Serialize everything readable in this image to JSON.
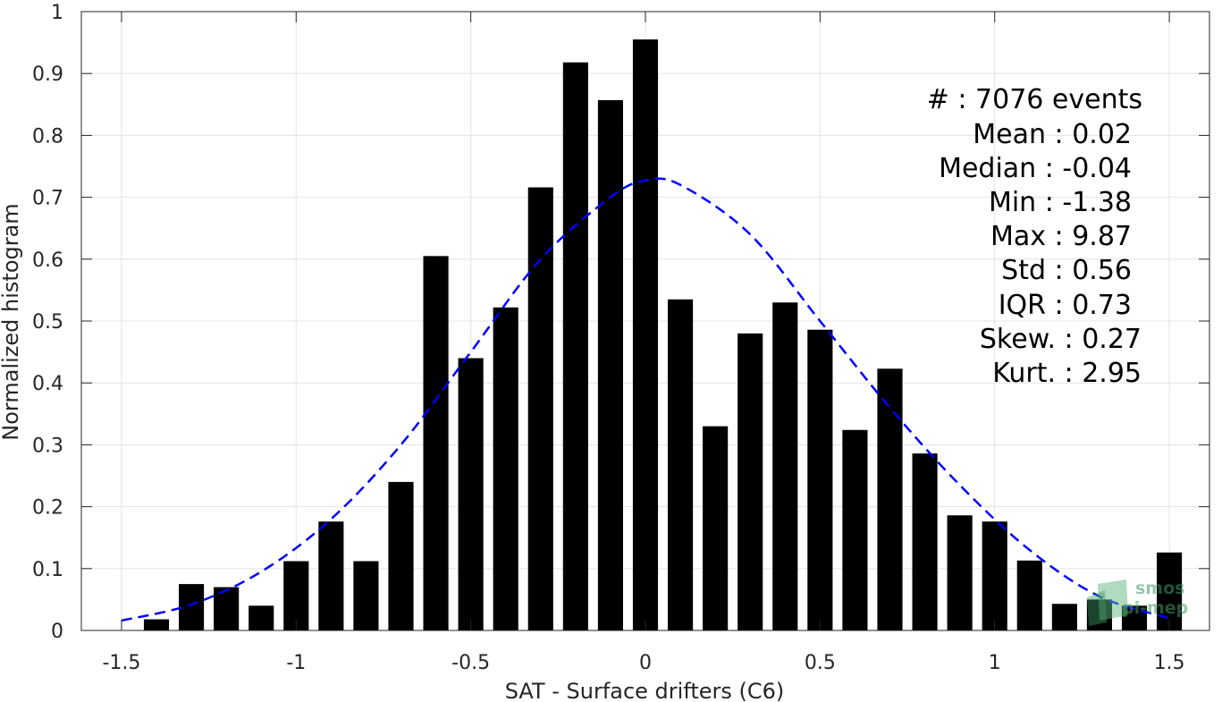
{
  "chart_data": {
    "type": "bar",
    "xlabel": "SAT - Surface drifters (C6)",
    "ylabel": "Normalized histogram",
    "xlim": [
      -1.615,
      1.615
    ],
    "ylim": [
      0,
      1
    ],
    "grid": true,
    "xticks": [
      "-1.5",
      "-1",
      "-0.5",
      "0",
      "0.5",
      "1",
      "1.5"
    ],
    "yticks": [
      "0",
      "0.1",
      "0.2",
      "0.3",
      "0.4",
      "0.5",
      "0.6",
      "0.7",
      "0.8",
      "0.9",
      "1"
    ],
    "bars": {
      "x": [
        -1.4,
        -1.3,
        -1.2,
        -1.1,
        -1.0,
        -0.9,
        -0.8,
        -0.7,
        -0.6,
        -0.5,
        -0.4,
        -0.3,
        -0.2,
        -0.1,
        0.0,
        0.1,
        0.2,
        0.3,
        0.4,
        0.5,
        0.6,
        0.7,
        0.8,
        0.9,
        1.0,
        1.1,
        1.2,
        1.3,
        1.4,
        1.5
      ],
      "values": [
        0.018,
        0.075,
        0.07,
        0.04,
        0.112,
        0.176,
        0.112,
        0.24,
        0.605,
        0.44,
        0.522,
        0.716,
        0.918,
        0.857,
        0.955,
        0.535,
        0.33,
        0.48,
        0.53,
        0.486,
        0.324,
        0.423,
        0.286,
        0.186,
        0.176,
        0.113,
        0.043,
        0.05,
        0.04,
        0.126
      ],
      "color": "#000000"
    },
    "fit_curve": {
      "style": "dashed",
      "color": "#0000ff",
      "x": [
        -1.5,
        -1.3,
        -1.1,
        -0.9,
        -0.7,
        -0.5,
        -0.3,
        -0.1,
        0.0,
        0.1,
        0.3,
        0.5,
        0.7,
        0.9,
        1.1,
        1.3,
        1.5
      ],
      "y": [
        0.016,
        0.042,
        0.095,
        0.18,
        0.3,
        0.45,
        0.6,
        0.7,
        0.727,
        0.72,
        0.64,
        0.5,
        0.36,
        0.235,
        0.13,
        0.055,
        0.02
      ]
    },
    "annotations": [
      "#  : 7076 events",
      "Mean : 0.02",
      "Median : -0.04",
      "Min : -1.38",
      "Max : 9.87",
      "Std : 0.56",
      "IQR : 0.73",
      "Skew. : 0.27",
      "Kurt. : 2.95"
    ],
    "watermark": [
      "smos",
      "pi-mep"
    ]
  }
}
